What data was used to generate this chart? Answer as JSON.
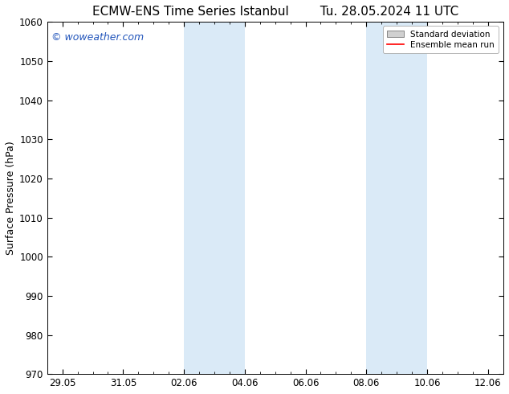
{
  "title_left": "ECMW-ENS Time Series Istanbul",
  "title_right": "Tu. 28.05.2024 11 UTC",
  "ylabel": "Surface Pressure (hPa)",
  "ylim": [
    970,
    1060
  ],
  "yticks": [
    970,
    980,
    990,
    1000,
    1010,
    1020,
    1030,
    1040,
    1050,
    1060
  ],
  "xtick_labels": [
    "29.05",
    "31.05",
    "02.06",
    "04.06",
    "06.06",
    "08.06",
    "10.06",
    "12.06"
  ],
  "background_color": "#ffffff",
  "shade_color": "#daeaf7",
  "legend_std_color": "#d0d0d0",
  "legend_mean_color": "#ff0000",
  "watermark_text": "© woweather.com",
  "watermark_color": "#2255bb",
  "title_fontsize": 11,
  "ylabel_fontsize": 9,
  "tick_label_fontsize": 8.5,
  "watermark_fontsize": 9,
  "blue_shaded_blocks": [
    {
      "x_start": 4.0,
      "x_end": 6.0
    },
    {
      "x_start": 10.0,
      "x_end": 12.0
    }
  ],
  "xtick_positions": [
    0,
    2,
    4,
    6,
    8,
    10,
    12,
    14
  ],
  "xlim": [
    -0.5,
    14.5
  ]
}
